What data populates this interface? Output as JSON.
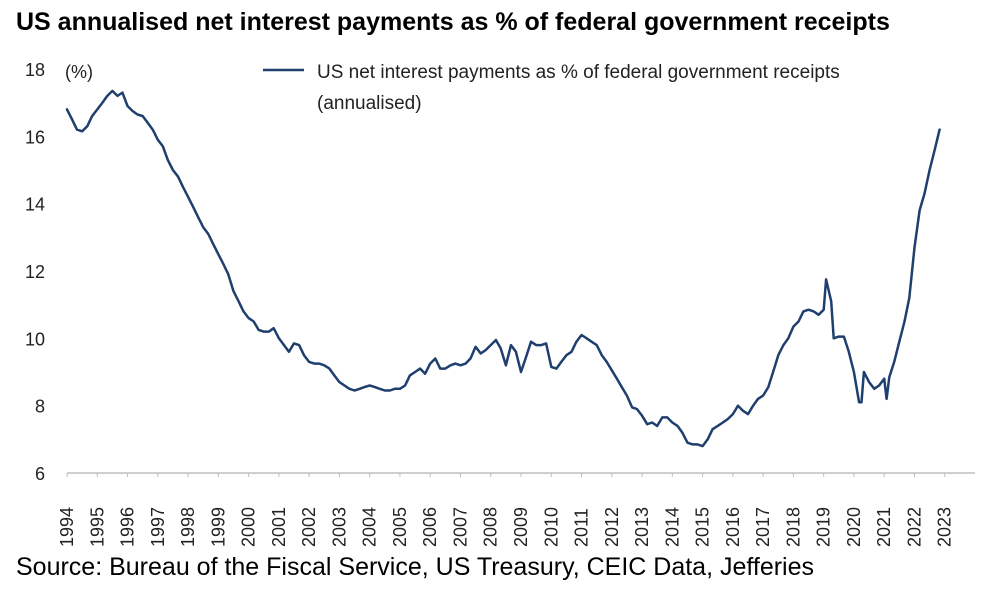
{
  "title": "US annualised net interest payments as % of federal government receipts",
  "source": "Source: Bureau of the Fiscal Service, US Treasury, CEIC Data, Jefferies",
  "colors": {
    "line": "#1f3f6e",
    "axis": "#bfbfbf",
    "text": "#222222"
  },
  "chart_data": {
    "type": "line",
    "title": "US annualised net interest payments as % of federal government receipts",
    "ylabel": "(%)",
    "xlabel": "",
    "ylim": [
      6,
      18
    ],
    "xlim": [
      1994.0,
      2024.0
    ],
    "yticks": [
      6,
      8,
      10,
      12,
      14,
      16,
      18
    ],
    "xticks": [
      "1994",
      "1995",
      "1996",
      "1997",
      "1998",
      "1999",
      "2000",
      "2001",
      "2002",
      "2003",
      "2004",
      "2005",
      "2006",
      "2007",
      "2008",
      "2009",
      "2010",
      "2011",
      "2012",
      "2013",
      "2014",
      "2015",
      "2016",
      "2017",
      "2018",
      "2019",
      "2020",
      "2021",
      "2022",
      "2023"
    ],
    "grid": false,
    "legend_position": "top-right",
    "series": [
      {
        "name": "US net interest payments as % of federal government receipts (annualised)",
        "points": [
          [
            1994.0,
            16.8
          ],
          [
            1994.17,
            16.5
          ],
          [
            1994.33,
            16.2
          ],
          [
            1994.5,
            16.15
          ],
          [
            1994.67,
            16.3
          ],
          [
            1994.83,
            16.6
          ],
          [
            1995.0,
            16.8
          ],
          [
            1995.17,
            17.0
          ],
          [
            1995.33,
            17.2
          ],
          [
            1995.5,
            17.35
          ],
          [
            1995.67,
            17.2
          ],
          [
            1995.83,
            17.3
          ],
          [
            1996.0,
            16.9
          ],
          [
            1996.17,
            16.75
          ],
          [
            1996.33,
            16.65
          ],
          [
            1996.5,
            16.6
          ],
          [
            1996.67,
            16.4
          ],
          [
            1996.83,
            16.2
          ],
          [
            1997.0,
            15.9
          ],
          [
            1997.17,
            15.7
          ],
          [
            1997.33,
            15.3
          ],
          [
            1997.5,
            15.0
          ],
          [
            1997.67,
            14.8
          ],
          [
            1997.83,
            14.5
          ],
          [
            1998.0,
            14.2
          ],
          [
            1998.17,
            13.9
          ],
          [
            1998.33,
            13.6
          ],
          [
            1998.5,
            13.3
          ],
          [
            1998.67,
            13.1
          ],
          [
            1998.83,
            12.8
          ],
          [
            1999.0,
            12.5
          ],
          [
            1999.17,
            12.2
          ],
          [
            1999.33,
            11.9
          ],
          [
            1999.5,
            11.4
          ],
          [
            1999.67,
            11.1
          ],
          [
            1999.83,
            10.8
          ],
          [
            2000.0,
            10.6
          ],
          [
            2000.17,
            10.5
          ],
          [
            2000.33,
            10.25
          ],
          [
            2000.5,
            10.2
          ],
          [
            2000.67,
            10.2
          ],
          [
            2000.83,
            10.3
          ],
          [
            2001.0,
            10.0
          ],
          [
            2001.17,
            9.8
          ],
          [
            2001.33,
            9.6
          ],
          [
            2001.5,
            9.85
          ],
          [
            2001.67,
            9.8
          ],
          [
            2001.83,
            9.5
          ],
          [
            2002.0,
            9.3
          ],
          [
            2002.17,
            9.25
          ],
          [
            2002.33,
            9.25
          ],
          [
            2002.5,
            9.2
          ],
          [
            2002.67,
            9.1
          ],
          [
            2002.83,
            8.9
          ],
          [
            2003.0,
            8.7
          ],
          [
            2003.17,
            8.6
          ],
          [
            2003.33,
            8.5
          ],
          [
            2003.5,
            8.45
          ],
          [
            2003.67,
            8.5
          ],
          [
            2003.83,
            8.55
          ],
          [
            2004.0,
            8.6
          ],
          [
            2004.17,
            8.55
          ],
          [
            2004.33,
            8.5
          ],
          [
            2004.5,
            8.45
          ],
          [
            2004.67,
            8.45
          ],
          [
            2004.83,
            8.5
          ],
          [
            2005.0,
            8.5
          ],
          [
            2005.17,
            8.6
          ],
          [
            2005.33,
            8.9
          ],
          [
            2005.5,
            9.0
          ],
          [
            2005.67,
            9.1
          ],
          [
            2005.83,
            8.95
          ],
          [
            2006.0,
            9.25
          ],
          [
            2006.17,
            9.4
          ],
          [
            2006.33,
            9.1
          ],
          [
            2006.5,
            9.1
          ],
          [
            2006.67,
            9.2
          ],
          [
            2006.83,
            9.25
          ],
          [
            2007.0,
            9.2
          ],
          [
            2007.17,
            9.25
          ],
          [
            2007.33,
            9.4
          ],
          [
            2007.5,
            9.75
          ],
          [
            2007.67,
            9.55
          ],
          [
            2007.83,
            9.65
          ],
          [
            2008.0,
            9.8
          ],
          [
            2008.17,
            9.95
          ],
          [
            2008.33,
            9.7
          ],
          [
            2008.5,
            9.2
          ],
          [
            2008.67,
            9.8
          ],
          [
            2008.83,
            9.6
          ],
          [
            2009.0,
            9.0
          ],
          [
            2009.17,
            9.45
          ],
          [
            2009.33,
            9.9
          ],
          [
            2009.5,
            9.8
          ],
          [
            2009.67,
            9.8
          ],
          [
            2009.83,
            9.85
          ],
          [
            2010.0,
            9.15
          ],
          [
            2010.17,
            9.1
          ],
          [
            2010.33,
            9.3
          ],
          [
            2010.5,
            9.5
          ],
          [
            2010.67,
            9.6
          ],
          [
            2010.83,
            9.9
          ],
          [
            2011.0,
            10.1
          ],
          [
            2011.17,
            10.0
          ],
          [
            2011.33,
            9.9
          ],
          [
            2011.5,
            9.8
          ],
          [
            2011.67,
            9.5
          ],
          [
            2011.83,
            9.3
          ],
          [
            2012.0,
            9.05
          ],
          [
            2012.17,
            8.8
          ],
          [
            2012.33,
            8.55
          ],
          [
            2012.5,
            8.3
          ],
          [
            2012.67,
            7.95
          ],
          [
            2012.83,
            7.9
          ],
          [
            2013.0,
            7.7
          ],
          [
            2013.17,
            7.45
          ],
          [
            2013.33,
            7.5
          ],
          [
            2013.5,
            7.4
          ],
          [
            2013.67,
            7.65
          ],
          [
            2013.83,
            7.65
          ],
          [
            2014.0,
            7.5
          ],
          [
            2014.17,
            7.4
          ],
          [
            2014.33,
            7.2
          ],
          [
            2014.5,
            6.9
          ],
          [
            2014.67,
            6.85
          ],
          [
            2014.83,
            6.85
          ],
          [
            2015.0,
            6.8
          ],
          [
            2015.17,
            7.0
          ],
          [
            2015.33,
            7.3
          ],
          [
            2015.5,
            7.4
          ],
          [
            2015.67,
            7.5
          ],
          [
            2015.83,
            7.6
          ],
          [
            2016.0,
            7.75
          ],
          [
            2016.17,
            8.0
          ],
          [
            2016.33,
            7.85
          ],
          [
            2016.5,
            7.75
          ],
          [
            2016.67,
            8.0
          ],
          [
            2016.83,
            8.2
          ],
          [
            2017.0,
            8.3
          ],
          [
            2017.17,
            8.55
          ],
          [
            2017.33,
            9.0
          ],
          [
            2017.5,
            9.5
          ],
          [
            2017.67,
            9.8
          ],
          [
            2017.83,
            10.0
          ],
          [
            2018.0,
            10.35
          ],
          [
            2018.17,
            10.5
          ],
          [
            2018.33,
            10.8
          ],
          [
            2018.5,
            10.85
          ],
          [
            2018.67,
            10.8
          ],
          [
            2018.83,
            10.7
          ],
          [
            2019.0,
            10.85
          ],
          [
            2019.08,
            11.75
          ],
          [
            2019.25,
            11.1
          ],
          [
            2019.33,
            10.0
          ],
          [
            2019.5,
            10.05
          ],
          [
            2019.67,
            10.05
          ],
          [
            2019.83,
            9.6
          ],
          [
            2020.0,
            9.0
          ],
          [
            2020.17,
            8.1
          ],
          [
            2020.25,
            8.1
          ],
          [
            2020.33,
            9.0
          ],
          [
            2020.5,
            8.7
          ],
          [
            2020.67,
            8.5
          ],
          [
            2020.83,
            8.6
          ],
          [
            2021.0,
            8.8
          ],
          [
            2021.08,
            8.2
          ],
          [
            2021.17,
            8.85
          ],
          [
            2021.33,
            9.3
          ],
          [
            2021.5,
            9.9
          ],
          [
            2021.67,
            10.5
          ],
          [
            2021.83,
            11.2
          ],
          [
            2022.0,
            12.7
          ],
          [
            2022.17,
            13.8
          ],
          [
            2022.33,
            14.3
          ],
          [
            2022.5,
            15.0
          ],
          [
            2022.67,
            15.6
          ],
          [
            2022.83,
            16.2
          ]
        ]
      }
    ]
  }
}
